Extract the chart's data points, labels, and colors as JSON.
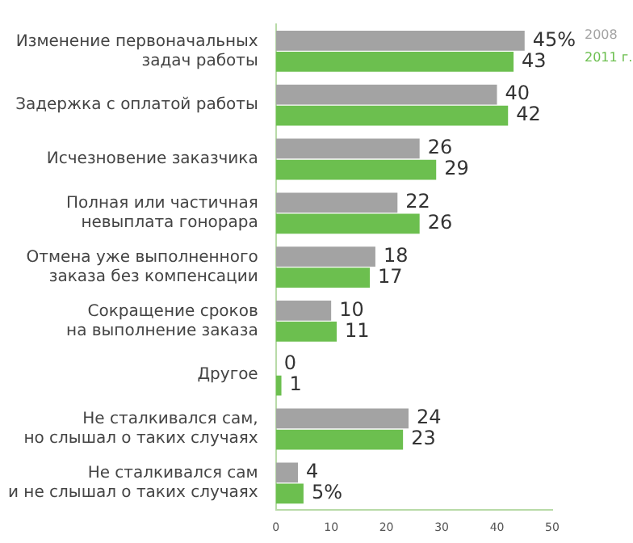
{
  "chart_data": {
    "type": "bar",
    "orientation": "horizontal",
    "categories": [
      "Изменение первоначальных\nзадач работы",
      "Задержка с оплатой работы",
      "Исчезновение заказчика",
      "Полная или частичная\nневыплата гонорара",
      "Отмена уже выполненного\nзаказа без компенсации",
      "Сокращение сроков\nна выполнение заказа",
      "Другое",
      "Не сталкивался сам,\nно слышал о таких случаях",
      "Не сталкивался сам\nи не слышал о таких случаях"
    ],
    "series": [
      {
        "name": "2008",
        "color": "#a3a3a3",
        "values": [
          45,
          40,
          26,
          22,
          18,
          10,
          0,
          24,
          4
        ],
        "value_labels": [
          "45%",
          "40",
          "26",
          "22",
          "18",
          "10",
          "0",
          "24",
          "4"
        ]
      },
      {
        "name": "2011 г.",
        "color": "#6cbf4f",
        "values": [
          43,
          42,
          29,
          26,
          17,
          11,
          1,
          23,
          5
        ],
        "value_labels": [
          "43",
          "42",
          "29",
          "26",
          "17",
          "11",
          "1",
          "23",
          "5%"
        ]
      }
    ],
    "xlim": [
      0,
      50
    ],
    "xticks": [
      0,
      10,
      20,
      30,
      40,
      50
    ],
    "grid": false,
    "legend": "top right"
  }
}
